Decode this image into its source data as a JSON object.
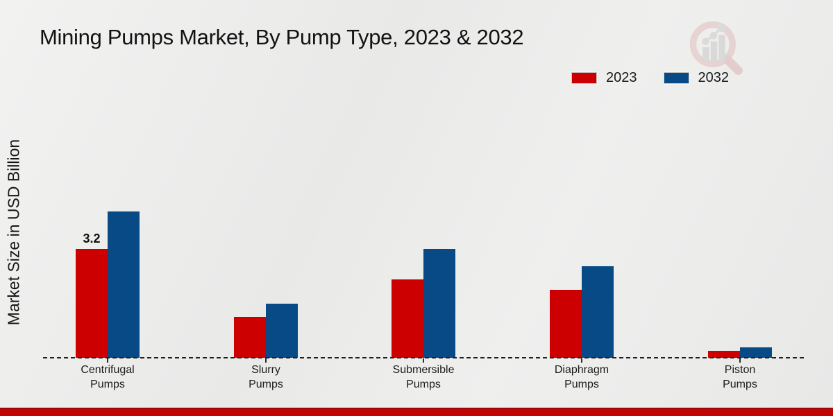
{
  "title": "Mining Pumps Market, By Pump Type, 2023 & 2032",
  "y_axis_label": "Market Size in USD Billion",
  "legend": {
    "items": [
      {
        "label": "2023",
        "color": "#cc0000"
      },
      {
        "label": "2032",
        "color": "#084a86"
      }
    ]
  },
  "chart_data": {
    "type": "bar",
    "title": "Mining Pumps Market, By Pump Type, 2023 & 2032",
    "ylabel": "Market Size in USD Billion",
    "xlabel": "",
    "unit": "USD Billion",
    "grid": false,
    "legend_position": "top-right",
    "baseline_style": "dashed",
    "categories": [
      "Centrifugal Pumps",
      "Slurry Pumps",
      "Submersible Pumps",
      "Diaphragm Pumps",
      "Piston Pumps"
    ],
    "series": [
      {
        "name": "2023",
        "color": "#cc0000",
        "values": [
          3.2,
          1.2,
          2.3,
          2.0,
          0.2
        ]
      },
      {
        "name": "2032",
        "color": "#084a86",
        "values": [
          4.3,
          1.6,
          3.2,
          2.7,
          0.3
        ]
      }
    ],
    "bar_labels": [
      {
        "category_index": 0,
        "series_index": 0,
        "text": "3.2"
      }
    ],
    "ylim": [
      0,
      4.6
    ]
  },
  "footer": {
    "strip_color": "#c10404"
  },
  "logo": {
    "name": "market-research-magnifier-logo"
  }
}
